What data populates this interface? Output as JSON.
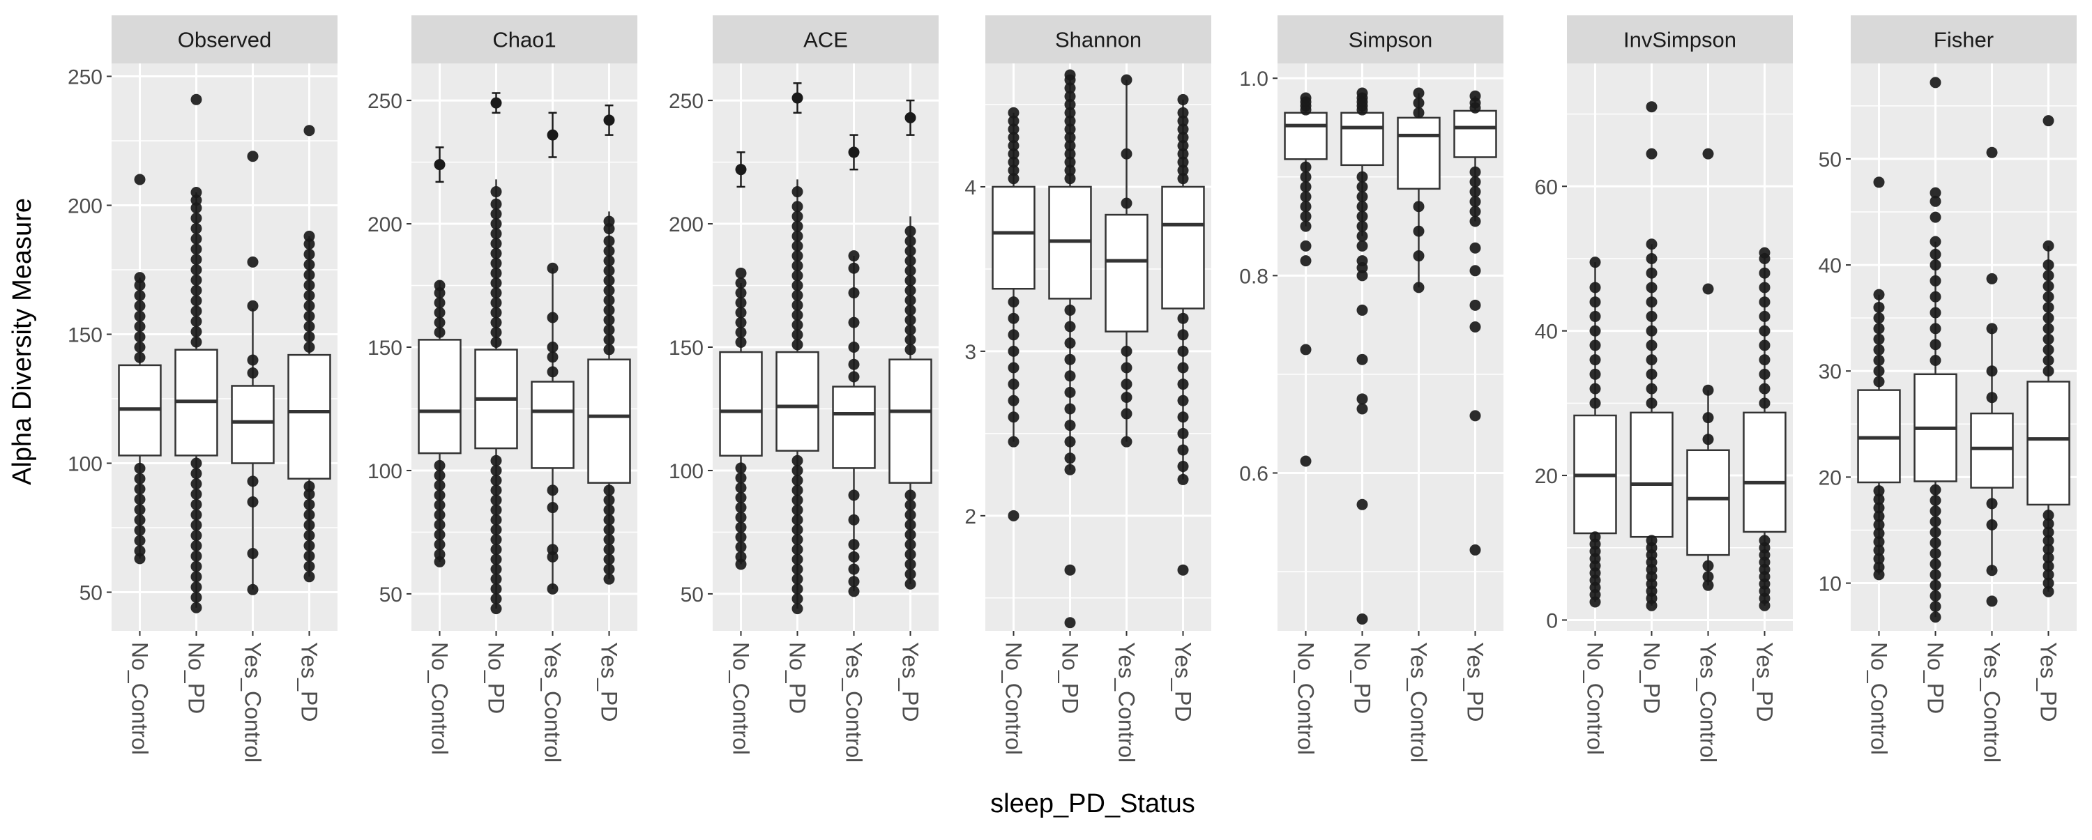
{
  "chart_data": {
    "type": "boxplot",
    "ylabel": "Alpha Diversity Measure",
    "xlabel": "sleep_PD_Status",
    "categories": [
      "No_Control",
      "No_PD",
      "Yes_Control",
      "Yes_PD"
    ],
    "facets": [
      {
        "name": "Observed",
        "ylim": [
          35,
          255
        ],
        "yticks": [
          50,
          100,
          150,
          200,
          250
        ],
        "boxes": [
          {
            "category": "No_Control",
            "whislo": 63,
            "q1": 103,
            "med": 121,
            "q3": 138,
            "whishi": 172,
            "points": [
              63,
              66,
              70,
              74,
              78,
              82,
              86,
              90,
              94,
              98,
              141,
              145,
              149,
              153,
              157,
              161,
              165,
              169,
              172,
              210
            ]
          },
          {
            "category": "No_PD",
            "whislo": 44,
            "q1": 103,
            "med": 124,
            "q3": 144,
            "whishi": 205,
            "points": [
              44,
              48,
              52,
              56,
              60,
              64,
              68,
              72,
              76,
              80,
              84,
              88,
              92,
              96,
              100,
              147,
              151,
              155,
              159,
              163,
              167,
              171,
              175,
              179,
              183,
              187,
              191,
              195,
              199,
              202,
              205,
              241
            ]
          },
          {
            "category": "Yes_Control",
            "whislo": 51,
            "q1": 100,
            "med": 116,
            "q3": 130,
            "whishi": 160,
            "points": [
              51,
              65,
              85,
              93,
              135,
              140,
              161,
              178,
              219
            ]
          },
          {
            "category": "Yes_PD",
            "whislo": 56,
            "q1": 94,
            "med": 120,
            "q3": 142,
            "whishi": 188,
            "points": [
              56,
              60,
              64,
              68,
              72,
              76,
              80,
              84,
              88,
              91,
              145,
              149,
              153,
              157,
              161,
              165,
              169,
              173,
              177,
              181,
              185,
              188,
              229
            ]
          }
        ]
      },
      {
        "name": "Chao1",
        "ylim": [
          35,
          265
        ],
        "yticks": [
          50,
          100,
          150,
          200,
          250
        ],
        "boxes": [
          {
            "category": "No_Control",
            "whislo": 63,
            "q1": 107,
            "med": 124,
            "q3": 153,
            "whishi": 177,
            "points": [
              63,
              66,
              70,
              74,
              78,
              82,
              86,
              90,
              94,
              98,
              102,
              156,
              160,
              164,
              168,
              172,
              175
            ],
            "outlier": 224,
            "err": 7
          },
          {
            "category": "No_PD",
            "whislo": 44,
            "q1": 109,
            "med": 129,
            "q3": 149,
            "whishi": 218,
            "points": [
              44,
              48,
              52,
              56,
              60,
              64,
              68,
              72,
              76,
              80,
              84,
              88,
              92,
              96,
              100,
              104,
              152,
              156,
              160,
              164,
              168,
              172,
              176,
              180,
              184,
              188,
              192,
              196,
              200,
              204,
              208,
              213
            ],
            "outlier": 249,
            "err": 4
          },
          {
            "category": "Yes_Control",
            "whislo": 52,
            "q1": 101,
            "med": 124,
            "q3": 136,
            "whishi": 182,
            "points": [
              52,
              65,
              68,
              85,
              92,
              140,
              146,
              150,
              162,
              182
            ],
            "outlier": 236,
            "err": 9
          },
          {
            "category": "Yes_PD",
            "whislo": 56,
            "q1": 95,
            "med": 122,
            "q3": 145,
            "whishi": 205,
            "points": [
              56,
              60,
              64,
              68,
              72,
              76,
              80,
              84,
              88,
              92,
              149,
              153,
              157,
              161,
              165,
              169,
              173,
              177,
              181,
              185,
              189,
              193,
              198,
              201
            ],
            "outlier": 242,
            "err": 6
          }
        ]
      },
      {
        "name": "ACE",
        "ylim": [
          35,
          265
        ],
        "yticks": [
          50,
          100,
          150,
          200,
          250
        ],
        "boxes": [
          {
            "category": "No_Control",
            "whislo": 62,
            "q1": 106,
            "med": 124,
            "q3": 148,
            "whishi": 176,
            "points": [
              62,
              65,
              69,
              73,
              77,
              81,
              85,
              89,
              93,
              97,
              101,
              152,
              156,
              160,
              164,
              168,
              172,
              176,
              180
            ],
            "outlier": 222,
            "err": 7
          },
          {
            "category": "No_PD",
            "whislo": 44,
            "q1": 108,
            "med": 126,
            "q3": 148,
            "whishi": 218,
            "points": [
              44,
              48,
              52,
              56,
              60,
              64,
              68,
              72,
              76,
              80,
              84,
              88,
              92,
              96,
              100,
              104,
              151,
              155,
              159,
              163,
              167,
              171,
              175,
              179,
              183,
              187,
              191,
              195,
              199,
              203,
              207,
              213
            ],
            "outlier": 251,
            "err": 6
          },
          {
            "category": "Yes_Control",
            "whislo": 51,
            "q1": 101,
            "med": 123,
            "q3": 134,
            "whishi": 187,
            "points": [
              51,
              55,
              60,
              65,
              70,
              80,
              90,
              138,
              143,
              150,
              160,
              172,
              182,
              187
            ],
            "outlier": 229,
            "err": 7
          },
          {
            "category": "Yes_PD",
            "whislo": 54,
            "q1": 95,
            "med": 124,
            "q3": 145,
            "whishi": 203,
            "points": [
              54,
              58,
              62,
              66,
              70,
              74,
              78,
              82,
              86,
              90,
              149,
              153,
              157,
              161,
              165,
              169,
              173,
              177,
              181,
              185,
              189,
              193,
              197
            ],
            "outlier": 243,
            "err": 7
          }
        ]
      },
      {
        "name": "Shannon",
        "ylim": [
          1.3,
          4.75
        ],
        "yticks": [
          2,
          3,
          4
        ],
        "boxes": [
          {
            "category": "No_Control",
            "whislo": 2.45,
            "q1": 3.38,
            "med": 3.72,
            "q3": 4.0,
            "whishi": 4.45,
            "points": [
              2.0,
              2.45,
              2.6,
              2.7,
              2.8,
              2.9,
              3.0,
              3.1,
              3.2,
              3.3,
              4.05,
              4.1,
              4.15,
              4.2,
              4.25,
              4.3,
              4.35,
              4.4,
              4.45
            ]
          },
          {
            "category": "No_PD",
            "whislo": 2.28,
            "q1": 3.32,
            "med": 3.67,
            "q3": 4.0,
            "whishi": 4.68,
            "points": [
              1.35,
              1.67,
              2.28,
              2.35,
              2.45,
              2.55,
              2.65,
              2.75,
              2.85,
              2.95,
              3.05,
              3.15,
              3.25,
              4.05,
              4.1,
              4.15,
              4.2,
              4.25,
              4.3,
              4.35,
              4.4,
              4.45,
              4.5,
              4.55,
              4.6,
              4.65,
              4.68
            ]
          },
          {
            "category": "Yes_Control",
            "whislo": 2.45,
            "q1": 3.12,
            "med": 3.55,
            "q3": 3.83,
            "whishi": 4.65,
            "points": [
              2.45,
              2.62,
              2.72,
              2.8,
              2.9,
              3.0,
              3.9,
              4.2,
              4.65
            ]
          },
          {
            "category": "Yes_PD",
            "whislo": 2.22,
            "q1": 3.26,
            "med": 3.77,
            "q3": 4.0,
            "whishi": 4.53,
            "points": [
              1.67,
              2.22,
              2.3,
              2.4,
              2.5,
              2.6,
              2.7,
              2.8,
              2.9,
              3.0,
              3.1,
              3.2,
              4.05,
              4.1,
              4.15,
              4.2,
              4.25,
              4.3,
              4.35,
              4.4,
              4.45,
              4.53
            ]
          }
        ]
      },
      {
        "name": "Simpson",
        "ylim": [
          0.44,
          1.015
        ],
        "yticks": [
          0.6,
          0.8,
          1.0
        ],
        "boxes": [
          {
            "category": "No_Control",
            "whislo": 0.85,
            "q1": 0.918,
            "med": 0.952,
            "q3": 0.965,
            "whishi": 0.98,
            "points": [
              0.612,
              0.725,
              0.815,
              0.83,
              0.85,
              0.86,
              0.87,
              0.88,
              0.89,
              0.9,
              0.91,
              0.968,
              0.972,
              0.976,
              0.98
            ]
          },
          {
            "category": "No_PD",
            "whislo": 0.84,
            "q1": 0.912,
            "med": 0.95,
            "q3": 0.965,
            "whishi": 0.985,
            "points": [
              0.452,
              0.568,
              0.665,
              0.675,
              0.715,
              0.765,
              0.8,
              0.808,
              0.815,
              0.83,
              0.84,
              0.85,
              0.86,
              0.87,
              0.88,
              0.89,
              0.9,
              0.968,
              0.972,
              0.976,
              0.98,
              0.985
            ]
          },
          {
            "category": "Yes_Control",
            "whislo": 0.788,
            "q1": 0.888,
            "med": 0.942,
            "q3": 0.96,
            "whishi": 0.985,
            "points": [
              0.788,
              0.82,
              0.845,
              0.87,
              0.965,
              0.975,
              0.985
            ]
          },
          {
            "category": "Yes_PD",
            "whislo": 0.855,
            "q1": 0.92,
            "med": 0.95,
            "q3": 0.967,
            "whishi": 0.982,
            "points": [
              0.522,
              0.658,
              0.748,
              0.77,
              0.805,
              0.828,
              0.855,
              0.865,
              0.875,
              0.885,
              0.895,
              0.905,
              0.97,
              0.975,
              0.982
            ]
          }
        ]
      },
      {
        "name": "InvSimpson",
        "ylim": [
          -1.5,
          77
        ],
        "yticks": [
          0,
          20,
          40,
          60
        ],
        "boxes": [
          {
            "category": "No_Control",
            "whislo": 2.5,
            "q1": 12,
            "med": 20,
            "q3": 28.3,
            "whishi": 49.5,
            "points": [
              2.5,
              3.5,
              4.5,
              5.5,
              6.5,
              7.5,
              8.5,
              9.5,
              10.5,
              11.5,
              30,
              32,
              34,
              36,
              38,
              40,
              42,
              44,
              46,
              49.5
            ]
          },
          {
            "category": "No_PD",
            "whislo": 2,
            "q1": 11.5,
            "med": 18.8,
            "q3": 28.7,
            "whishi": 52,
            "points": [
              2,
              3,
              4,
              5,
              6,
              7,
              8,
              9,
              10,
              11,
              30,
              32,
              34,
              36,
              38,
              40,
              42,
              44,
              46,
              48,
              50,
              52,
              64.5,
              71
            ]
          },
          {
            "category": "Yes_Control",
            "whislo": 4.8,
            "q1": 9,
            "med": 16.8,
            "q3": 23.5,
            "whishi": 31.8,
            "points": [
              4.8,
              6,
              7.5,
              25,
              28,
              31.8,
              45.8,
              64.5
            ]
          },
          {
            "category": "Yes_PD",
            "whislo": 2,
            "q1": 12.2,
            "med": 19,
            "q3": 28.7,
            "whishi": 50.8,
            "points": [
              2,
              3,
              4,
              5,
              6,
              7,
              8,
              9,
              10,
              11,
              30,
              32,
              34,
              36,
              38,
              40,
              42,
              44,
              46,
              48,
              50,
              50.8
            ]
          }
        ]
      },
      {
        "name": "Fisher",
        "ylim": [
          5.5,
          59
        ],
        "yticks": [
          10,
          20,
          30,
          40,
          50
        ],
        "boxes": [
          {
            "category": "No_Control",
            "whislo": 10.8,
            "q1": 19.5,
            "med": 23.7,
            "q3": 28.2,
            "whishi": 37.2,
            "points": [
              10.8,
              11.5,
              12.3,
              13.1,
              13.9,
              14.7,
              15.5,
              16.3,
              17.1,
              17.9,
              18.7,
              29,
              30,
              31,
              32,
              33,
              34,
              35,
              36,
              37.2,
              47.8
            ]
          },
          {
            "category": "No_PD",
            "whislo": 6.8,
            "q1": 19.6,
            "med": 24.6,
            "q3": 29.7,
            "whishi": 42.2,
            "points": [
              6.8,
              7.8,
              8.8,
              9.8,
              10.8,
              11.8,
              12.8,
              13.8,
              14.8,
              15.8,
              16.8,
              17.8,
              18.8,
              31,
              32.5,
              34,
              35.5,
              37,
              38.5,
              40,
              41,
              42.2,
              44.5,
              46,
              46.8,
              57.2
            ]
          },
          {
            "category": "Yes_Control",
            "whislo": 11.2,
            "q1": 19,
            "med": 22.7,
            "q3": 26,
            "whishi": 34,
            "points": [
              8.3,
              11.2,
              15.5,
              17.5,
              27.5,
              30,
              34,
              38.7,
              50.6
            ]
          },
          {
            "category": "Yes_PD",
            "whislo": 9.2,
            "q1": 17.4,
            "med": 23.6,
            "q3": 29,
            "whishi": 41.8,
            "points": [
              9.2,
              10,
              10.8,
              11.6,
              12.4,
              13.2,
              14,
              14.8,
              15.6,
              16.4,
              30,
              31,
              32,
              33,
              34,
              35,
              36,
              37,
              38,
              39,
              40,
              41.8,
              53.6
            ]
          }
        ]
      }
    ],
    "grid": true,
    "legend": "none"
  }
}
